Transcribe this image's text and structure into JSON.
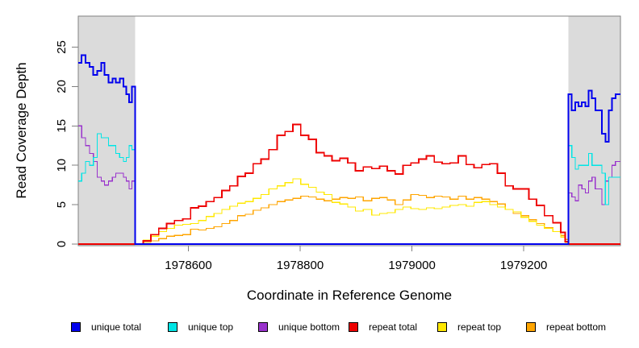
{
  "chart_data": {
    "type": "line",
    "subtype": "step-coverage-plot",
    "title": "",
    "xlabel": "Coordinate in Reference Genome",
    "ylabel": "Read Coverage Depth",
    "xlim": [
      1978403,
      1979373
    ],
    "ylim": [
      -0.2,
      28.94
    ],
    "x_ticks": [
      1978600,
      1978800,
      1979000,
      1979200
    ],
    "y_ticks": [
      0,
      5,
      10,
      15,
      20,
      25
    ],
    "grid": false,
    "legend_position": "bottom",
    "axis_color": "#808080",
    "text_color": "#000000",
    "shaded_regions": [
      {
        "x0": 1978403,
        "x1": 1978505,
        "color": "#DBDBDB"
      },
      {
        "x0": 1979280,
        "x1": 1979373,
        "color": "#DBDBDB"
      }
    ],
    "series": [
      {
        "name": "repeat bottom",
        "color": "#FFA500",
        "width": 1.2,
        "points": [
          [
            1978403,
            0
          ],
          [
            1978505,
            0
          ],
          [
            1978519,
            0.2
          ],
          [
            1978533,
            0.4
          ],
          [
            1978547,
            0.7
          ],
          [
            1978561,
            1
          ],
          [
            1978575,
            1.1
          ],
          [
            1978590,
            1.2
          ],
          [
            1978604,
            1.9
          ],
          [
            1978618,
            1.8
          ],
          [
            1978632,
            2
          ],
          [
            1978646,
            2.2
          ],
          [
            1978660,
            2.6
          ],
          [
            1978674,
            3
          ],
          [
            1978688,
            3.6
          ],
          [
            1978702,
            3.8
          ],
          [
            1978716,
            4.3
          ],
          [
            1978730,
            4.6
          ],
          [
            1978744,
            5
          ],
          [
            1978759,
            5.4
          ],
          [
            1978773,
            5.6
          ],
          [
            1978787,
            5.8
          ],
          [
            1978801,
            6.1
          ],
          [
            1978815,
            6
          ],
          [
            1978829,
            5.7
          ],
          [
            1978843,
            5.5
          ],
          [
            1978857,
            5.7
          ],
          [
            1978871,
            5.9
          ],
          [
            1978885,
            5.8
          ],
          [
            1978899,
            6
          ],
          [
            1978913,
            5.5
          ],
          [
            1978928,
            5.8
          ],
          [
            1978942,
            5.9
          ],
          [
            1978956,
            5.6
          ],
          [
            1978970,
            5
          ],
          [
            1978984,
            5.6
          ],
          [
            1978998,
            6.3
          ],
          [
            1979012,
            6.2
          ],
          [
            1979026,
            5.9
          ],
          [
            1979040,
            6.1
          ],
          [
            1979054,
            6
          ],
          [
            1979068,
            5.7
          ],
          [
            1979083,
            6.1
          ],
          [
            1979097,
            5.7
          ],
          [
            1979111,
            5.9
          ],
          [
            1979125,
            5.7
          ],
          [
            1979139,
            5.4
          ],
          [
            1979153,
            5.1
          ],
          [
            1979167,
            4.4
          ],
          [
            1979181,
            3.9
          ],
          [
            1979195,
            3.6
          ],
          [
            1979209,
            3.1
          ],
          [
            1979223,
            2.6
          ],
          [
            1979237,
            2.1
          ],
          [
            1979252,
            1.6
          ],
          [
            1979266,
            1.1
          ],
          [
            1979274,
            0.6
          ],
          [
            1979280,
            0
          ],
          [
            1979373,
            0
          ]
        ]
      },
      {
        "name": "repeat top",
        "color": "#FFE800",
        "width": 1.2,
        "points": [
          [
            1978403,
            0
          ],
          [
            1978505,
            0
          ],
          [
            1978519,
            0.5
          ],
          [
            1978533,
            1
          ],
          [
            1978547,
            1.6
          ],
          [
            1978561,
            2
          ],
          [
            1978575,
            2.4
          ],
          [
            1978590,
            2.5
          ],
          [
            1978604,
            2.6
          ],
          [
            1978618,
            3
          ],
          [
            1978632,
            3.5
          ],
          [
            1978646,
            3.9
          ],
          [
            1978660,
            4.4
          ],
          [
            1978674,
            4.8
          ],
          [
            1978688,
            5.2
          ],
          [
            1978702,
            5.4
          ],
          [
            1978716,
            5.8
          ],
          [
            1978730,
            6.3
          ],
          [
            1978744,
            7
          ],
          [
            1978759,
            7.4
          ],
          [
            1978773,
            7.8
          ],
          [
            1978787,
            8.3
          ],
          [
            1978801,
            7.6
          ],
          [
            1978815,
            7.2
          ],
          [
            1978829,
            6.6
          ],
          [
            1978843,
            6.3
          ],
          [
            1978857,
            5.3
          ],
          [
            1978871,
            5.1
          ],
          [
            1978885,
            4.7
          ],
          [
            1978899,
            4.2
          ],
          [
            1978913,
            4.4
          ],
          [
            1978928,
            3.7
          ],
          [
            1978942,
            3.9
          ],
          [
            1978956,
            4
          ],
          [
            1978970,
            4.4
          ],
          [
            1978984,
            4.7
          ],
          [
            1978998,
            4.5
          ],
          [
            1979012,
            4.4
          ],
          [
            1979026,
            4.6
          ],
          [
            1979040,
            4.5
          ],
          [
            1979054,
            4.7
          ],
          [
            1979068,
            4.9
          ],
          [
            1979083,
            5
          ],
          [
            1979097,
            4.8
          ],
          [
            1979111,
            5.3
          ],
          [
            1979125,
            5.4
          ],
          [
            1979139,
            5
          ],
          [
            1979153,
            4.7
          ],
          [
            1979167,
            4.4
          ],
          [
            1979181,
            4.1
          ],
          [
            1979195,
            3.4
          ],
          [
            1979209,
            2.9
          ],
          [
            1979223,
            2.4
          ],
          [
            1979237,
            2
          ],
          [
            1979252,
            1.6
          ],
          [
            1979266,
            0.9
          ],
          [
            1979274,
            0.2
          ],
          [
            1979280,
            0
          ],
          [
            1979373,
            0
          ]
        ]
      },
      {
        "name": "repeat total",
        "color": "#EE0000",
        "width": 1.8,
        "points": [
          [
            1978403,
            0
          ],
          [
            1978505,
            0
          ],
          [
            1978519,
            0.4
          ],
          [
            1978533,
            1.2
          ],
          [
            1978547,
            2
          ],
          [
            1978561,
            2.6
          ],
          [
            1978575,
            3
          ],
          [
            1978590,
            3.2
          ],
          [
            1978604,
            4.6
          ],
          [
            1978618,
            4.8
          ],
          [
            1978632,
            5.4
          ],
          [
            1978646,
            5.9
          ],
          [
            1978660,
            6.8
          ],
          [
            1978674,
            7.4
          ],
          [
            1978688,
            8.6
          ],
          [
            1978702,
            9
          ],
          [
            1978716,
            10.2
          ],
          [
            1978730,
            10.8
          ],
          [
            1978744,
            12
          ],
          [
            1978759,
            13.8
          ],
          [
            1978773,
            14.3
          ],
          [
            1978787,
            15.2
          ],
          [
            1978801,
            13.8
          ],
          [
            1978815,
            13.3
          ],
          [
            1978829,
            11.6
          ],
          [
            1978843,
            11.2
          ],
          [
            1978857,
            10.6
          ],
          [
            1978871,
            10.9
          ],
          [
            1978885,
            10.3
          ],
          [
            1978899,
            9.3
          ],
          [
            1978913,
            9.8
          ],
          [
            1978928,
            9.6
          ],
          [
            1978942,
            9.9
          ],
          [
            1978956,
            9.3
          ],
          [
            1978970,
            8.9
          ],
          [
            1978984,
            10
          ],
          [
            1978998,
            10.3
          ],
          [
            1979012,
            10.8
          ],
          [
            1979026,
            11.2
          ],
          [
            1979040,
            10.4
          ],
          [
            1979054,
            10.2
          ],
          [
            1979068,
            10.3
          ],
          [
            1979083,
            11.2
          ],
          [
            1979097,
            10.1
          ],
          [
            1979111,
            9.7
          ],
          [
            1979125,
            10.1
          ],
          [
            1979139,
            10.2
          ],
          [
            1979153,
            9
          ],
          [
            1979167,
            7.4
          ],
          [
            1979181,
            7
          ],
          [
            1979195,
            7
          ],
          [
            1979209,
            5.7
          ],
          [
            1979223,
            4.9
          ],
          [
            1979237,
            3.6
          ],
          [
            1979252,
            2.7
          ],
          [
            1979266,
            1.5
          ],
          [
            1979274,
            0.3
          ],
          [
            1979280,
            0
          ],
          [
            1979373,
            0
          ]
        ]
      },
      {
        "name": "unique bottom",
        "color": "#9932CC",
        "width": 1.2,
        "points": [
          [
            1978403,
            15
          ],
          [
            1978409,
            13.5
          ],
          [
            1978416,
            12.5
          ],
          [
            1978423,
            11.5
          ],
          [
            1978430,
            10.5
          ],
          [
            1978437,
            8.5
          ],
          [
            1978444,
            8
          ],
          [
            1978450,
            7.5
          ],
          [
            1978457,
            8
          ],
          [
            1978464,
            8.5
          ],
          [
            1978470,
            9
          ],
          [
            1978477,
            9
          ],
          [
            1978484,
            8.5
          ],
          [
            1978489,
            8
          ],
          [
            1978494,
            7
          ],
          [
            1978499,
            8
          ],
          [
            1978505,
            0
          ],
          [
            1979280,
            6.5
          ],
          [
            1979286,
            6
          ],
          [
            1979292,
            5.5
          ],
          [
            1979298,
            7.5
          ],
          [
            1979304,
            7
          ],
          [
            1979310,
            6.5
          ],
          [
            1979316,
            8
          ],
          [
            1979322,
            8.5
          ],
          [
            1979328,
            7
          ],
          [
            1979334,
            7
          ],
          [
            1979340,
            5
          ],
          [
            1979346,
            8
          ],
          [
            1979352,
            8.5
          ],
          [
            1979358,
            10
          ],
          [
            1979364,
            10.5
          ],
          [
            1979373,
            10.5
          ]
        ]
      },
      {
        "name": "unique top",
        "color": "#00E5E5",
        "width": 1.2,
        "points": [
          [
            1978403,
            8
          ],
          [
            1978409,
            9
          ],
          [
            1978416,
            10.5
          ],
          [
            1978423,
            10
          ],
          [
            1978430,
            11
          ],
          [
            1978437,
            14
          ],
          [
            1978444,
            13.5
          ],
          [
            1978450,
            13.5
          ],
          [
            1978457,
            12.5
          ],
          [
            1978464,
            12.5
          ],
          [
            1978470,
            11.5
          ],
          [
            1978477,
            11
          ],
          [
            1978484,
            10.5
          ],
          [
            1978489,
            11
          ],
          [
            1978494,
            12.5
          ],
          [
            1978499,
            12
          ],
          [
            1978505,
            0
          ],
          [
            1979280,
            12.5
          ],
          [
            1979286,
            11
          ],
          [
            1979292,
            9.5
          ],
          [
            1979298,
            10
          ],
          [
            1979304,
            10
          ],
          [
            1979310,
            10
          ],
          [
            1979316,
            11.5
          ],
          [
            1979322,
            10
          ],
          [
            1979328,
            10
          ],
          [
            1979334,
            10
          ],
          [
            1979340,
            9
          ],
          [
            1979346,
            5
          ],
          [
            1979352,
            8.5
          ],
          [
            1979358,
            8.5
          ],
          [
            1979364,
            8.5
          ],
          [
            1979373,
            8.5
          ]
        ]
      },
      {
        "name": "unique total",
        "color": "#0000EE",
        "width": 2,
        "points": [
          [
            1978403,
            23
          ],
          [
            1978409,
            24
          ],
          [
            1978416,
            23
          ],
          [
            1978423,
            22.5
          ],
          [
            1978430,
            21.5
          ],
          [
            1978437,
            22
          ],
          [
            1978444,
            23
          ],
          [
            1978450,
            21.5
          ],
          [
            1978457,
            20.5
          ],
          [
            1978464,
            21
          ],
          [
            1978470,
            20.5
          ],
          [
            1978477,
            21
          ],
          [
            1978484,
            20
          ],
          [
            1978489,
            19
          ],
          [
            1978494,
            18
          ],
          [
            1978499,
            20
          ],
          [
            1978505,
            0
          ],
          [
            1979280,
            19
          ],
          [
            1979286,
            17
          ],
          [
            1979292,
            18
          ],
          [
            1979298,
            17.5
          ],
          [
            1979304,
            18
          ],
          [
            1979310,
            17.5
          ],
          [
            1979316,
            19.5
          ],
          [
            1979322,
            18.5
          ],
          [
            1979328,
            17
          ],
          [
            1979334,
            17
          ],
          [
            1979340,
            14
          ],
          [
            1979346,
            13
          ],
          [
            1979352,
            17
          ],
          [
            1979358,
            18.5
          ],
          [
            1979364,
            19
          ],
          [
            1979373,
            19
          ]
        ]
      }
    ],
    "legend": [
      {
        "label": "unique total",
        "color": "#0000EE"
      },
      {
        "label": "unique top",
        "color": "#00E5E5"
      },
      {
        "label": "unique bottom",
        "color": "#9932CC"
      },
      {
        "label": "repeat total",
        "color": "#EE0000"
      },
      {
        "label": "repeat top",
        "color": "#FFE800"
      },
      {
        "label": "repeat bottom",
        "color": "#FFA500"
      }
    ]
  }
}
